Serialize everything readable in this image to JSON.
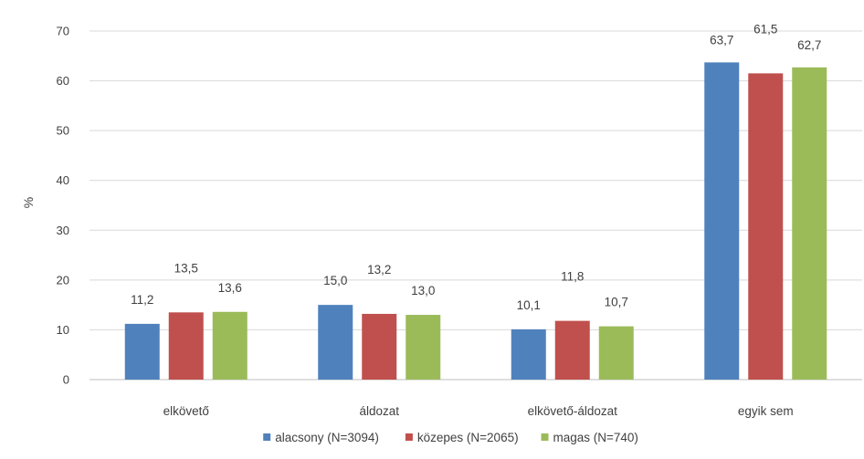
{
  "chart_data": {
    "type": "bar",
    "title": "",
    "xlabel": "",
    "ylabel": "%",
    "ylim": [
      0,
      70
    ],
    "yticks": [
      0,
      10,
      20,
      30,
      40,
      50,
      60,
      70
    ],
    "grid": true,
    "legend_position": "bottom",
    "categories": [
      "elkövető",
      "áldozat",
      "elkövető-áldozat",
      "egyik sem"
    ],
    "series": [
      {
        "name": "alacsony (N=3094)",
        "color": "#4F81BD",
        "values": [
          11.2,
          15.0,
          10.1,
          63.7
        ],
        "labels": [
          "11,2",
          "15,0",
          "10,1",
          "63,7"
        ]
      },
      {
        "name": "közepes (N=2065)",
        "color": "#C0504D",
        "values": [
          13.5,
          13.2,
          11.8,
          61.5
        ],
        "labels": [
          "13,5",
          "13,2",
          "11,8",
          "61,5"
        ]
      },
      {
        "name": "magas (N=740)",
        "color": "#9BBB59",
        "values": [
          13.6,
          13.0,
          10.7,
          62.7
        ],
        "labels": [
          "13,6",
          "13,0",
          "10,7",
          "62,7"
        ]
      }
    ]
  }
}
